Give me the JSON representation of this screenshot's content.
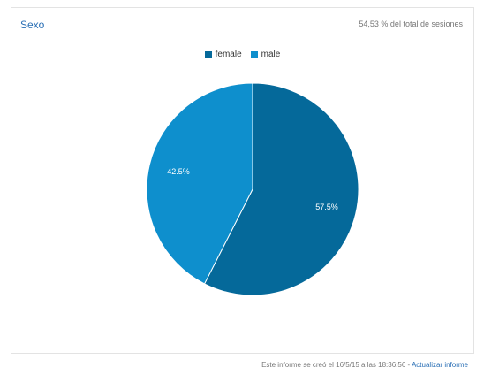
{
  "header": {
    "title": "Sexo",
    "subtitle": "54,53 % del total de sesiones"
  },
  "chart_data": {
    "type": "pie",
    "title": "",
    "categories": [
      "female",
      "male"
    ],
    "values": [
      57.5,
      42.5
    ],
    "labels": [
      "57.5%",
      "42.5%"
    ],
    "colors": [
      "#05699a",
      "#0e8fcd"
    ],
    "legend_position": "top-center"
  },
  "footer": {
    "created_text": "Este informe se creó el 16/5/15 a las 18:36:56 -",
    "refresh_link": "Actualizar informe"
  }
}
